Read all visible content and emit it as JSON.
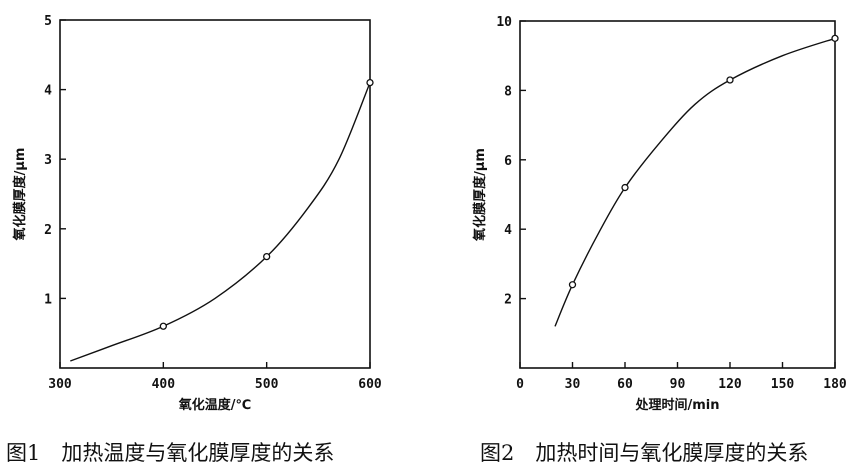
{
  "chart_data": [
    {
      "type": "line",
      "title": "",
      "xlabel": "氧化温度/℃",
      "ylabel": "氧化膜厚度/μm",
      "xlim": [
        300,
        600
      ],
      "ylim": [
        0,
        5
      ],
      "x_ticks": [
        "300",
        "400",
        "500",
        "600"
      ],
      "y_ticks": [
        "1",
        "2",
        "3",
        "4",
        "5"
      ],
      "grid": false,
      "points": [
        {
          "x": 400,
          "y": 0.6
        },
        {
          "x": 500,
          "y": 1.6
        },
        {
          "x": 600,
          "y": 4.1
        }
      ],
      "curve": [
        {
          "x": 310,
          "y": 0.1
        },
        {
          "x": 350,
          "y": 0.32
        },
        {
          "x": 400,
          "y": 0.6
        },
        {
          "x": 450,
          "y": 1.0
        },
        {
          "x": 500,
          "y": 1.6
        },
        {
          "x": 540,
          "y": 2.3
        },
        {
          "x": 570,
          "y": 3.0
        },
        {
          "x": 600,
          "y": 4.1
        }
      ]
    },
    {
      "type": "line",
      "title": "",
      "xlabel": "处理时间/min",
      "ylabel": "氧化膜厚度/μm",
      "xlim": [
        0,
        180
      ],
      "ylim": [
        0,
        10
      ],
      "x_ticks": [
        "0",
        "30",
        "60",
        "90",
        "120",
        "150",
        "180"
      ],
      "y_ticks": [
        "2",
        "4",
        "6",
        "8",
        "10"
      ],
      "grid": false,
      "points": [
        {
          "x": 30,
          "y": 2.4
        },
        {
          "x": 60,
          "y": 5.2
        },
        {
          "x": 120,
          "y": 8.3
        },
        {
          "x": 180,
          "y": 9.5
        }
      ],
      "curve": [
        {
          "x": 20,
          "y": 1.2
        },
        {
          "x": 30,
          "y": 2.4
        },
        {
          "x": 45,
          "y": 3.9
        },
        {
          "x": 60,
          "y": 5.2
        },
        {
          "x": 80,
          "y": 6.5
        },
        {
          "x": 100,
          "y": 7.6
        },
        {
          "x": 120,
          "y": 8.3
        },
        {
          "x": 150,
          "y": 9.0
        },
        {
          "x": 180,
          "y": 9.5
        }
      ]
    }
  ],
  "captions": {
    "fig1": "图1　加热温度与氧化膜厚度的关系",
    "fig2": "图2　加热时间与氧化膜厚度的关系"
  }
}
